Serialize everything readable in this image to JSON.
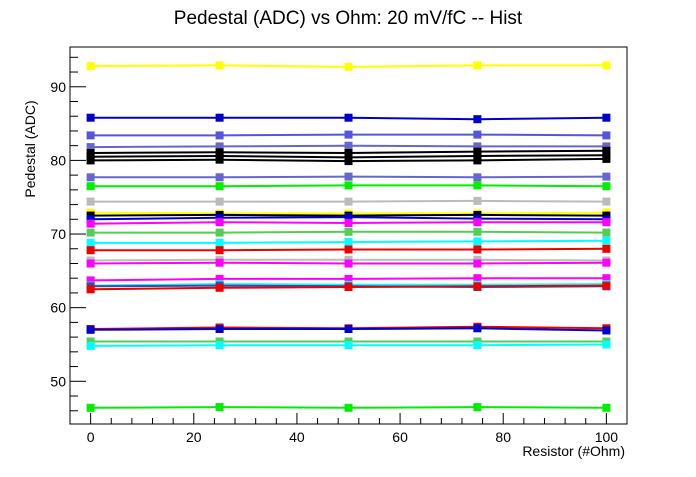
{
  "chart_data": {
    "type": "line",
    "title": "Pedestal (ADC) vs Ohm: 20 mV/fC -- Hist",
    "xlabel": "Resistor (#Ohm)",
    "ylabel": "Pedestal (ADC)",
    "xlim": [
      -4,
      104
    ],
    "ylim": [
      44.2,
      95.4
    ],
    "x": [
      0,
      25,
      50,
      75,
      100
    ],
    "x_ticks": [
      "0",
      "20",
      "40",
      "60",
      "80",
      "100"
    ],
    "y_ticks": [
      "50",
      "60",
      "70",
      "80",
      "90"
    ],
    "grid": false,
    "legend": "none",
    "series": [
      {
        "color": "#ffff00",
        "values": [
          92.8,
          92.9,
          92.7,
          92.9,
          92.9
        ]
      },
      {
        "color": "#0000cc",
        "values": [
          85.8,
          85.8,
          85.8,
          85.6,
          85.8
        ]
      },
      {
        "color": "#5555dd",
        "values": [
          83.4,
          83.4,
          83.5,
          83.5,
          83.4
        ]
      },
      {
        "color": "#6666cc",
        "values": [
          81.8,
          81.9,
          82.0,
          81.9,
          81.9
        ]
      },
      {
        "color": "#000000",
        "values": [
          81.0,
          81.1,
          81.0,
          81.2,
          81.3
        ]
      },
      {
        "color": "#000000",
        "values": [
          80.5,
          80.6,
          80.4,
          80.6,
          80.7
        ]
      },
      {
        "color": "#000000",
        "values": [
          80.0,
          80.1,
          79.9,
          80.0,
          80.2
        ]
      },
      {
        "color": "#6666cc",
        "values": [
          77.7,
          77.7,
          77.8,
          77.7,
          77.8
        ]
      },
      {
        "color": "#00ee00",
        "values": [
          76.5,
          76.5,
          76.6,
          76.6,
          76.5
        ]
      },
      {
        "color": "#bbbbbb",
        "values": [
          74.4,
          74.4,
          74.4,
          74.5,
          74.4
        ]
      },
      {
        "color": "#ffff00",
        "values": [
          72.9,
          72.8,
          72.8,
          72.8,
          72.9
        ]
      },
      {
        "color": "#000000",
        "values": [
          72.5,
          72.6,
          72.5,
          72.6,
          72.5
        ]
      },
      {
        "color": "#0000cc",
        "values": [
          72.0,
          72.2,
          72.3,
          72.1,
          72.0
        ]
      },
      {
        "color": "#ff00ff",
        "values": [
          71.4,
          71.6,
          71.5,
          71.6,
          71.6
        ]
      },
      {
        "color": "#55cc55",
        "values": [
          70.2,
          70.2,
          70.3,
          70.3,
          70.2
        ]
      },
      {
        "color": "#00ffff",
        "values": [
          68.8,
          68.8,
          68.9,
          69.0,
          69.1
        ]
      },
      {
        "color": "#ee0000",
        "values": [
          67.8,
          67.8,
          67.9,
          67.9,
          68.0
        ]
      },
      {
        "color": "#bbbbbb",
        "values": [
          66.4,
          66.5,
          66.5,
          66.5,
          66.4
        ]
      },
      {
        "color": "#ff00ff",
        "values": [
          66.0,
          66.1,
          66.0,
          66.0,
          66.1
        ]
      },
      {
        "color": "#ff00ff",
        "values": [
          63.7,
          63.9,
          63.9,
          64.0,
          64.0
        ]
      },
      {
        "color": "#00ffff",
        "values": [
          63.0,
          63.2,
          63.1,
          63.1,
          63.2
        ]
      },
      {
        "color": "#4444aa",
        "values": [
          62.9,
          63.0,
          62.9,
          62.8,
          62.9
        ]
      },
      {
        "color": "#ee0000",
        "values": [
          62.5,
          62.7,
          62.8,
          62.9,
          63.0
        ]
      },
      {
        "color": "#ee0000",
        "values": [
          57.1,
          57.3,
          57.2,
          57.4,
          57.2
        ]
      },
      {
        "color": "#0000cc",
        "values": [
          57.0,
          57.1,
          57.1,
          57.2,
          56.9
        ]
      },
      {
        "color": "#55cc55",
        "values": [
          55.4,
          55.4,
          55.4,
          55.4,
          55.4
        ]
      },
      {
        "color": "#00ffff",
        "values": [
          54.8,
          54.9,
          54.9,
          54.9,
          55.0
        ]
      },
      {
        "color": "#00ee00",
        "values": [
          46.4,
          46.5,
          46.4,
          46.5,
          46.4
        ]
      }
    ]
  }
}
